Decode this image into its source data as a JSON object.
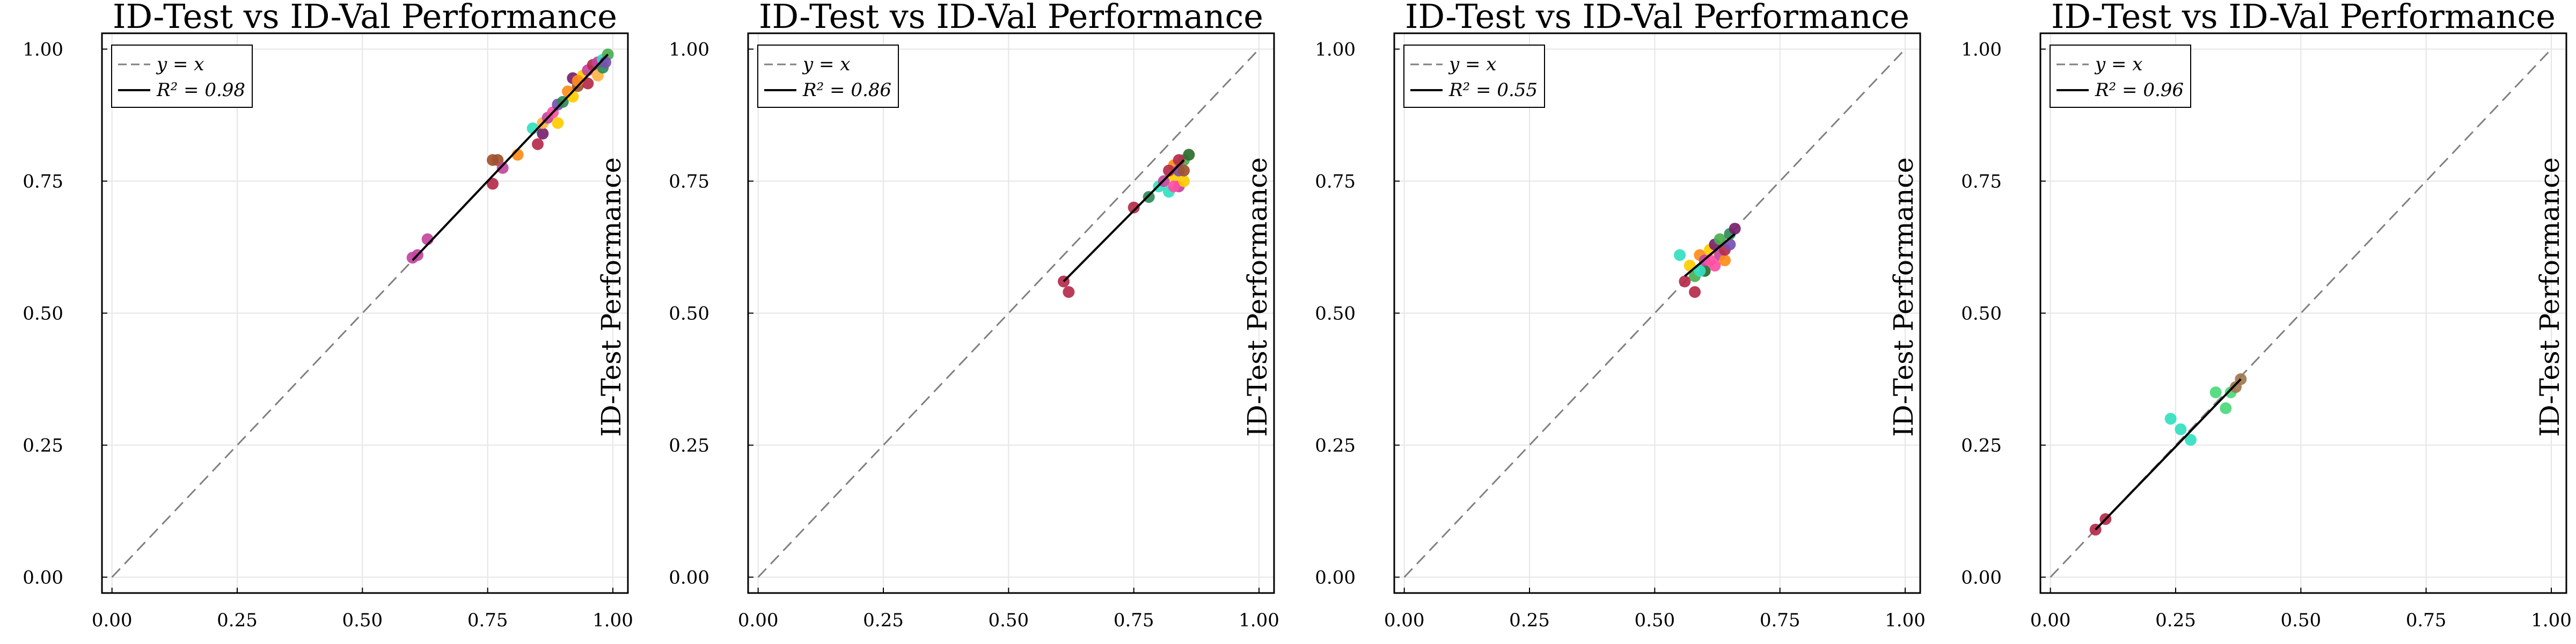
{
  "chart_data": [
    {
      "type": "scatter",
      "title": "ID-Test vs ID-Val Performance",
      "xlabel": "",
      "ylabel": "ID-Test Performance",
      "xlim": [
        -0.02,
        1.03
      ],
      "ylim": [
        -0.03,
        1.03
      ],
      "xticks": [
        "0.00",
        "0.25",
        "0.50",
        "0.75",
        "1.00"
      ],
      "yticks": [
        "0.00",
        "0.25",
        "0.50",
        "0.75",
        "1.00"
      ],
      "grid": true,
      "legend_position": "top-left",
      "legend": [
        "y = x",
        "R² = 0.98"
      ],
      "fit_line": {
        "x": [
          0.6,
          0.99
        ],
        "y": [
          0.6,
          0.99
        ]
      },
      "points": [
        {
          "x": 0.6,
          "y": 0.605,
          "color": "#c2459e"
        },
        {
          "x": 0.61,
          "y": 0.61,
          "color": "#c2459e"
        },
        {
          "x": 0.63,
          "y": 0.64,
          "color": "#c2459e"
        },
        {
          "x": 0.76,
          "y": 0.79,
          "color": "#a0522d"
        },
        {
          "x": 0.77,
          "y": 0.79,
          "color": "#a0522d"
        },
        {
          "x": 0.76,
          "y": 0.745,
          "color": "#b52b4b"
        },
        {
          "x": 0.78,
          "y": 0.775,
          "color": "#c2459e"
        },
        {
          "x": 0.81,
          "y": 0.8,
          "color": "#ff8c1a"
        },
        {
          "x": 0.84,
          "y": 0.85,
          "color": "#33e0c0"
        },
        {
          "x": 0.85,
          "y": 0.82,
          "color": "#b52b4b"
        },
        {
          "x": 0.86,
          "y": 0.84,
          "color": "#7a1f6e"
        },
        {
          "x": 0.86,
          "y": 0.86,
          "color": "#ffb347"
        },
        {
          "x": 0.87,
          "y": 0.87,
          "color": "#c2459e"
        },
        {
          "x": 0.88,
          "y": 0.88,
          "color": "#ff4fa3"
        },
        {
          "x": 0.89,
          "y": 0.86,
          "color": "#ffcc00"
        },
        {
          "x": 0.89,
          "y": 0.895,
          "color": "#7a4fb0"
        },
        {
          "x": 0.9,
          "y": 0.9,
          "color": "#2e8b57"
        },
        {
          "x": 0.91,
          "y": 0.92,
          "color": "#ff8c1a"
        },
        {
          "x": 0.92,
          "y": 0.91,
          "color": "#ffcc00"
        },
        {
          "x": 0.92,
          "y": 0.945,
          "color": "#7a1f6e"
        },
        {
          "x": 0.93,
          "y": 0.93,
          "color": "#a0522d"
        },
        {
          "x": 0.94,
          "y": 0.95,
          "color": "#ffcc00"
        },
        {
          "x": 0.95,
          "y": 0.96,
          "color": "#c2459e"
        },
        {
          "x": 0.95,
          "y": 0.935,
          "color": "#b52b4b"
        },
        {
          "x": 0.96,
          "y": 0.97,
          "color": "#b52b4b"
        },
        {
          "x": 0.97,
          "y": 0.975,
          "color": "#c2459e"
        },
        {
          "x": 0.97,
          "y": 0.95,
          "color": "#ffb347"
        },
        {
          "x": 0.98,
          "y": 0.98,
          "color": "#33e0c0"
        },
        {
          "x": 0.98,
          "y": 0.965,
          "color": "#2e8b57"
        },
        {
          "x": 0.99,
          "y": 0.99,
          "color": "#4caf50"
        },
        {
          "x": 0.985,
          "y": 0.975,
          "color": "#7a4fb0"
        },
        {
          "x": 0.93,
          "y": 0.94,
          "color": "#ff8c1a"
        }
      ]
    },
    {
      "type": "scatter",
      "title": "ID-Test vs ID-Val Performance",
      "xlabel": "",
      "ylabel": "ID-Test Performance",
      "xlim": [
        -0.02,
        1.03
      ],
      "ylim": [
        -0.03,
        1.03
      ],
      "xticks": [
        "0.00",
        "0.25",
        "0.50",
        "0.75",
        "1.00"
      ],
      "yticks": [
        "0.00",
        "0.25",
        "0.50",
        "0.75",
        "1.00"
      ],
      "grid": true,
      "legend_position": "top-left",
      "legend": [
        "y = x",
        "R² = 0.86"
      ],
      "fit_line": {
        "x": [
          0.61,
          0.85
        ],
        "y": [
          0.56,
          0.79
        ]
      },
      "points": [
        {
          "x": 0.61,
          "y": 0.56,
          "color": "#b52b4b"
        },
        {
          "x": 0.62,
          "y": 0.54,
          "color": "#b52b4b"
        },
        {
          "x": 0.75,
          "y": 0.7,
          "color": "#b52b4b"
        },
        {
          "x": 0.78,
          "y": 0.72,
          "color": "#2e8b57"
        },
        {
          "x": 0.8,
          "y": 0.74,
          "color": "#33e0c0"
        },
        {
          "x": 0.81,
          "y": 0.75,
          "color": "#c2459e"
        },
        {
          "x": 0.82,
          "y": 0.73,
          "color": "#33e0c0"
        },
        {
          "x": 0.83,
          "y": 0.76,
          "color": "#ffcc00"
        },
        {
          "x": 0.83,
          "y": 0.78,
          "color": "#ff8c1a"
        },
        {
          "x": 0.84,
          "y": 0.74,
          "color": "#c2459e"
        },
        {
          "x": 0.84,
          "y": 0.77,
          "color": "#7a4fb0"
        },
        {
          "x": 0.85,
          "y": 0.79,
          "color": "#4caf50"
        },
        {
          "x": 0.85,
          "y": 0.75,
          "color": "#ffcc00"
        },
        {
          "x": 0.86,
          "y": 0.8,
          "color": "#2e6b2e"
        },
        {
          "x": 0.82,
          "y": 0.77,
          "color": "#b52b4b"
        },
        {
          "x": 0.84,
          "y": 0.79,
          "color": "#b52b4b"
        },
        {
          "x": 0.83,
          "y": 0.74,
          "color": "#ff4fa3"
        },
        {
          "x": 0.85,
          "y": 0.77,
          "color": "#a0522d"
        }
      ]
    },
    {
      "type": "scatter",
      "title": "ID-Test vs ID-Val Performance",
      "xlabel": "",
      "ylabel": "ID-Test Performance",
      "xlim": [
        -0.02,
        1.03
      ],
      "ylim": [
        -0.03,
        1.03
      ],
      "xticks": [
        "0.00",
        "0.25",
        "0.50",
        "0.75",
        "1.00"
      ],
      "yticks": [
        "0.00",
        "0.25",
        "0.50",
        "0.75",
        "1.00"
      ],
      "grid": true,
      "legend_position": "top-left",
      "legend": [
        "y = x",
        "R² = 0.55"
      ],
      "fit_line": {
        "x": [
          0.56,
          0.66
        ],
        "y": [
          0.57,
          0.65
        ]
      },
      "points": [
        {
          "x": 0.55,
          "y": 0.61,
          "color": "#33e0c0"
        },
        {
          "x": 0.56,
          "y": 0.56,
          "color": "#b52b4b"
        },
        {
          "x": 0.57,
          "y": 0.59,
          "color": "#ffcc00"
        },
        {
          "x": 0.58,
          "y": 0.54,
          "color": "#b52b4b"
        },
        {
          "x": 0.58,
          "y": 0.57,
          "color": "#4caf50"
        },
        {
          "x": 0.59,
          "y": 0.61,
          "color": "#ff8c1a"
        },
        {
          "x": 0.6,
          "y": 0.58,
          "color": "#2e6b2e"
        },
        {
          "x": 0.6,
          "y": 0.6,
          "color": "#c2459e"
        },
        {
          "x": 0.61,
          "y": 0.62,
          "color": "#ffcc00"
        },
        {
          "x": 0.62,
          "y": 0.59,
          "color": "#ff4fa3"
        },
        {
          "x": 0.62,
          "y": 0.63,
          "color": "#7a1f6e"
        },
        {
          "x": 0.63,
          "y": 0.61,
          "color": "#c2459e"
        },
        {
          "x": 0.63,
          "y": 0.64,
          "color": "#4caf50"
        },
        {
          "x": 0.64,
          "y": 0.6,
          "color": "#ff8c1a"
        },
        {
          "x": 0.64,
          "y": 0.62,
          "color": "#b52b4b"
        },
        {
          "x": 0.65,
          "y": 0.63,
          "color": "#7a4fb0"
        },
        {
          "x": 0.65,
          "y": 0.65,
          "color": "#2e8b57"
        },
        {
          "x": 0.66,
          "y": 0.66,
          "color": "#7a1f6e"
        },
        {
          "x": 0.61,
          "y": 0.6,
          "color": "#ff4fa3"
        },
        {
          "x": 0.59,
          "y": 0.58,
          "color": "#33e0c0"
        }
      ]
    },
    {
      "type": "scatter",
      "title": "ID-Test vs ID-Val Performance",
      "xlabel": "",
      "ylabel": "ID-Test Performance",
      "xlim": [
        -0.02,
        1.03
      ],
      "ylim": [
        -0.03,
        1.03
      ],
      "xticks": [
        "0.00",
        "0.25",
        "0.50",
        "0.75",
        "1.00"
      ],
      "yticks": [
        "0.00",
        "0.25",
        "0.50",
        "0.75",
        "1.00"
      ],
      "grid": true,
      "legend_position": "top-left",
      "legend": [
        "y = x",
        "R² = 0.96"
      ],
      "fit_line": {
        "x": [
          0.09,
          0.38
        ],
        "y": [
          0.09,
          0.375
        ]
      },
      "points": [
        {
          "x": 0.09,
          "y": 0.09,
          "color": "#b52b4b"
        },
        {
          "x": 0.11,
          "y": 0.11,
          "color": "#b52b4b"
        },
        {
          "x": 0.24,
          "y": 0.3,
          "color": "#33e0c0"
        },
        {
          "x": 0.26,
          "y": 0.28,
          "color": "#33e0c0"
        },
        {
          "x": 0.28,
          "y": 0.26,
          "color": "#33e0c0"
        },
        {
          "x": 0.33,
          "y": 0.35,
          "color": "#4cd97b"
        },
        {
          "x": 0.35,
          "y": 0.32,
          "color": "#4cd97b"
        },
        {
          "x": 0.36,
          "y": 0.35,
          "color": "#4cd97b"
        },
        {
          "x": 0.37,
          "y": 0.36,
          "color": "#a07850"
        },
        {
          "x": 0.38,
          "y": 0.375,
          "color": "#a07850"
        }
      ]
    }
  ]
}
